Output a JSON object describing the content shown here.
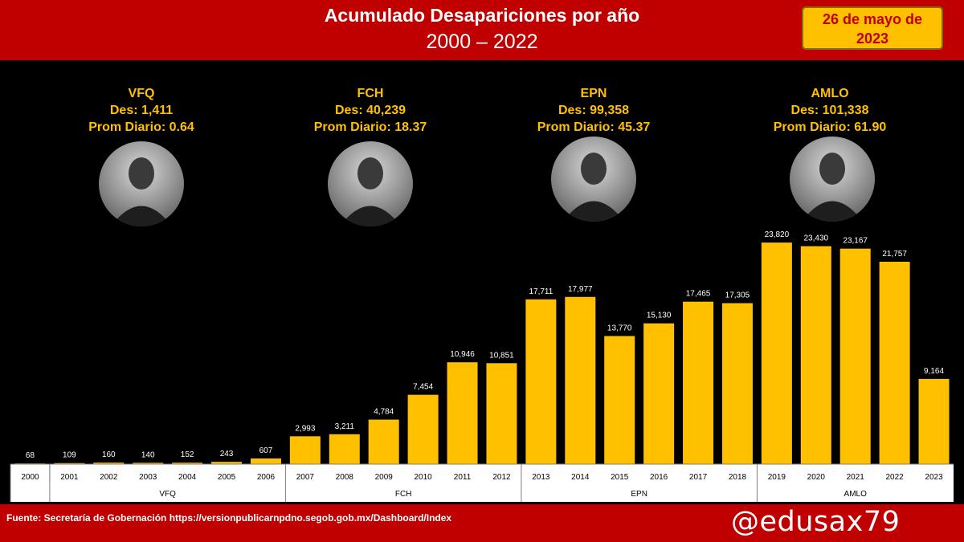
{
  "header": {
    "title": "Acumulado Desapariciones por año",
    "subtitle": "2000 – 2022",
    "date_line1": "26 de mayo de",
    "date_line2": "2023",
    "background_color": "#c00000",
    "badge_color": "#ffc000"
  },
  "presidents": [
    {
      "name": "VFQ",
      "des": "Des: 1,411",
      "prom": "Prom Diario: 0.64",
      "photo": "portrait-photo"
    },
    {
      "name": "FCH",
      "des": "Des: 40,239",
      "prom": "Prom Diario: 18.37",
      "photo": "portrait-photo"
    },
    {
      "name": "EPN",
      "des": "Des: 99,358",
      "prom": "Prom Diario: 45.37",
      "photo": "portrait-photo"
    },
    {
      "name": "AMLO",
      "des": "Des: 101,338",
      "prom": "Prom Diario: 61.90",
      "photo": "portrait-photo"
    }
  ],
  "chart_data": {
    "type": "bar",
    "title": "Acumulado Desapariciones por año",
    "subtitle": "2000 – 2022",
    "categories": [
      "2000",
      "2001",
      "2002",
      "2003",
      "2004",
      "2005",
      "2006",
      "2007",
      "2008",
      "2009",
      "2010",
      "2011",
      "2012",
      "2013",
      "2014",
      "2015",
      "2016",
      "2017",
      "2018",
      "2019",
      "2020",
      "2021",
      "2022",
      "2023"
    ],
    "values": [
      68,
      109,
      160,
      140,
      152,
      243,
      607,
      2993,
      3211,
      4784,
      7454,
      10946,
      10851,
      17711,
      17977,
      13770,
      15130,
      17465,
      17305,
      23820,
      23430,
      23167,
      21757,
      9164
    ],
    "value_labels": [
      "68",
      "109",
      "160",
      "140",
      "152",
      "243",
      "607",
      "2,993",
      "3,211",
      "4,784",
      "7,454",
      "10,946",
      "10,851",
      "17,711",
      "17,977",
      "13,770",
      "15,130",
      "17,465",
      "17,305",
      "23,820",
      "23,430",
      "23,167",
      "21,757",
      "9,164"
    ],
    "groups": [
      {
        "label": "VFQ",
        "categories": [
          "2001",
          "2002",
          "2003",
          "2004",
          "2005",
          "2006"
        ]
      },
      {
        "label": "FCH",
        "categories": [
          "2007",
          "2008",
          "2009",
          "2010",
          "2011",
          "2012"
        ]
      },
      {
        "label": "EPN",
        "categories": [
          "2013",
          "2014",
          "2015",
          "2016",
          "2017",
          "2018"
        ]
      },
      {
        "label": "AMLO",
        "categories": [
          "2019",
          "2020",
          "2021",
          "2022",
          "2023"
        ]
      }
    ],
    "bar_color": "#ffc000",
    "background": "#000000",
    "ylim": [
      0,
      24000
    ],
    "grid": false,
    "legend": "none"
  },
  "footer": {
    "source": "Fuente: Secretaría de Gobernación https://versionpublicarnpdno.segob.gob.mx/Dashboard/Index",
    "handle": "@edusax79"
  }
}
